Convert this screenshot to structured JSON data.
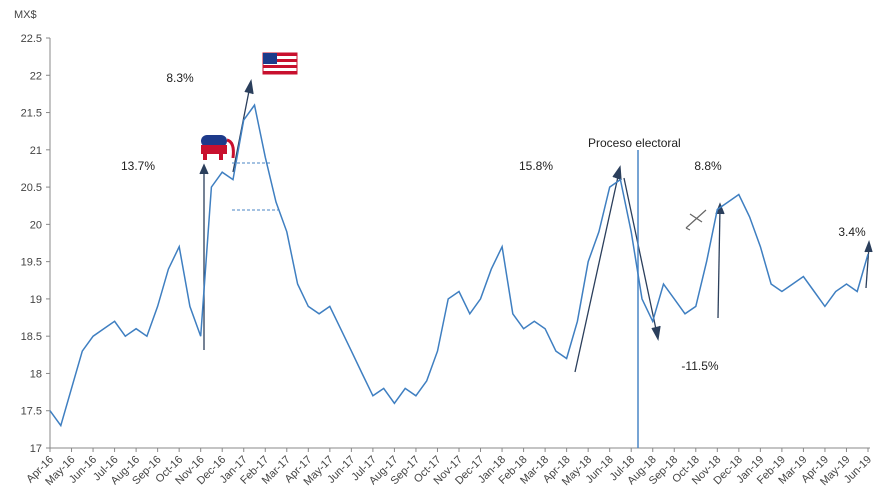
{
  "chart_data": {
    "type": "line",
    "unit_label": "MX$",
    "categories": [
      "Apr-16",
      null,
      "May-16",
      null,
      "Jun-16",
      null,
      "Jul-16",
      null,
      "Aug-16",
      null,
      "Sep-16",
      null,
      "Oct-16",
      null,
      "Nov-16",
      null,
      "Dec-16",
      null,
      "Jan-17",
      null,
      "Feb-17",
      null,
      "Mar-17",
      null,
      "Apr-17",
      null,
      "May-17",
      null,
      "Jun-17",
      null,
      "Jul-17",
      null,
      "Aug-17",
      null,
      "Sep-17",
      null,
      "Oct-17",
      null,
      "Nov-17",
      null,
      "Dec-17",
      null,
      "Jan-18",
      null,
      "Feb-18",
      null,
      "Mar-18",
      null,
      "Apr-18",
      null,
      "May-18",
      null,
      "Jun-18",
      null,
      "Jul-18",
      null,
      "Aug-18",
      null,
      "Sep-18",
      null,
      "Oct-18",
      null,
      "Nov-18",
      null,
      "Dec-18",
      null,
      "Jan-19",
      null,
      "Feb-19",
      null,
      "Mar-19",
      null,
      "Apr-19",
      null,
      "May-19",
      null,
      "Jun-19"
    ],
    "values": [
      17.5,
      17.3,
      17.8,
      18.3,
      18.5,
      18.6,
      18.7,
      18.5,
      18.6,
      18.5,
      18.9,
      19.4,
      19.7,
      18.9,
      18.5,
      20.5,
      20.7,
      20.6,
      21.4,
      21.6,
      20.9,
      20.3,
      19.9,
      19.2,
      18.9,
      18.8,
      18.9,
      18.6,
      18.3,
      18.0,
      17.7,
      17.8,
      17.6,
      17.8,
      17.7,
      17.9,
      18.3,
      19.0,
      19.1,
      18.8,
      19.0,
      19.4,
      19.7,
      18.8,
      18.6,
      18.7,
      18.6,
      18.3,
      18.2,
      18.7,
      19.5,
      19.9,
      20.5,
      20.6,
      19.9,
      19.0,
      18.7,
      19.2,
      19.0,
      18.8,
      18.9,
      19.5,
      20.2,
      20.3,
      20.4,
      20.1,
      19.7,
      19.2,
      19.1,
      19.2,
      19.3,
      19.1,
      18.9,
      19.1,
      19.2,
      19.1,
      19.6
    ],
    "color": "#3f7fc1",
    "ylim": [
      17,
      22.5
    ],
    "yticks": [
      17,
      17.5,
      18,
      18.5,
      19,
      19.5,
      20,
      20.5,
      21,
      21.5,
      22,
      22.5
    ],
    "grid": false,
    "annotations": [
      "8.3%",
      "13.7%",
      "15.8%",
      "Proceso electoral",
      "8.8%",
      "3.4%",
      "-11.5%"
    ]
  }
}
